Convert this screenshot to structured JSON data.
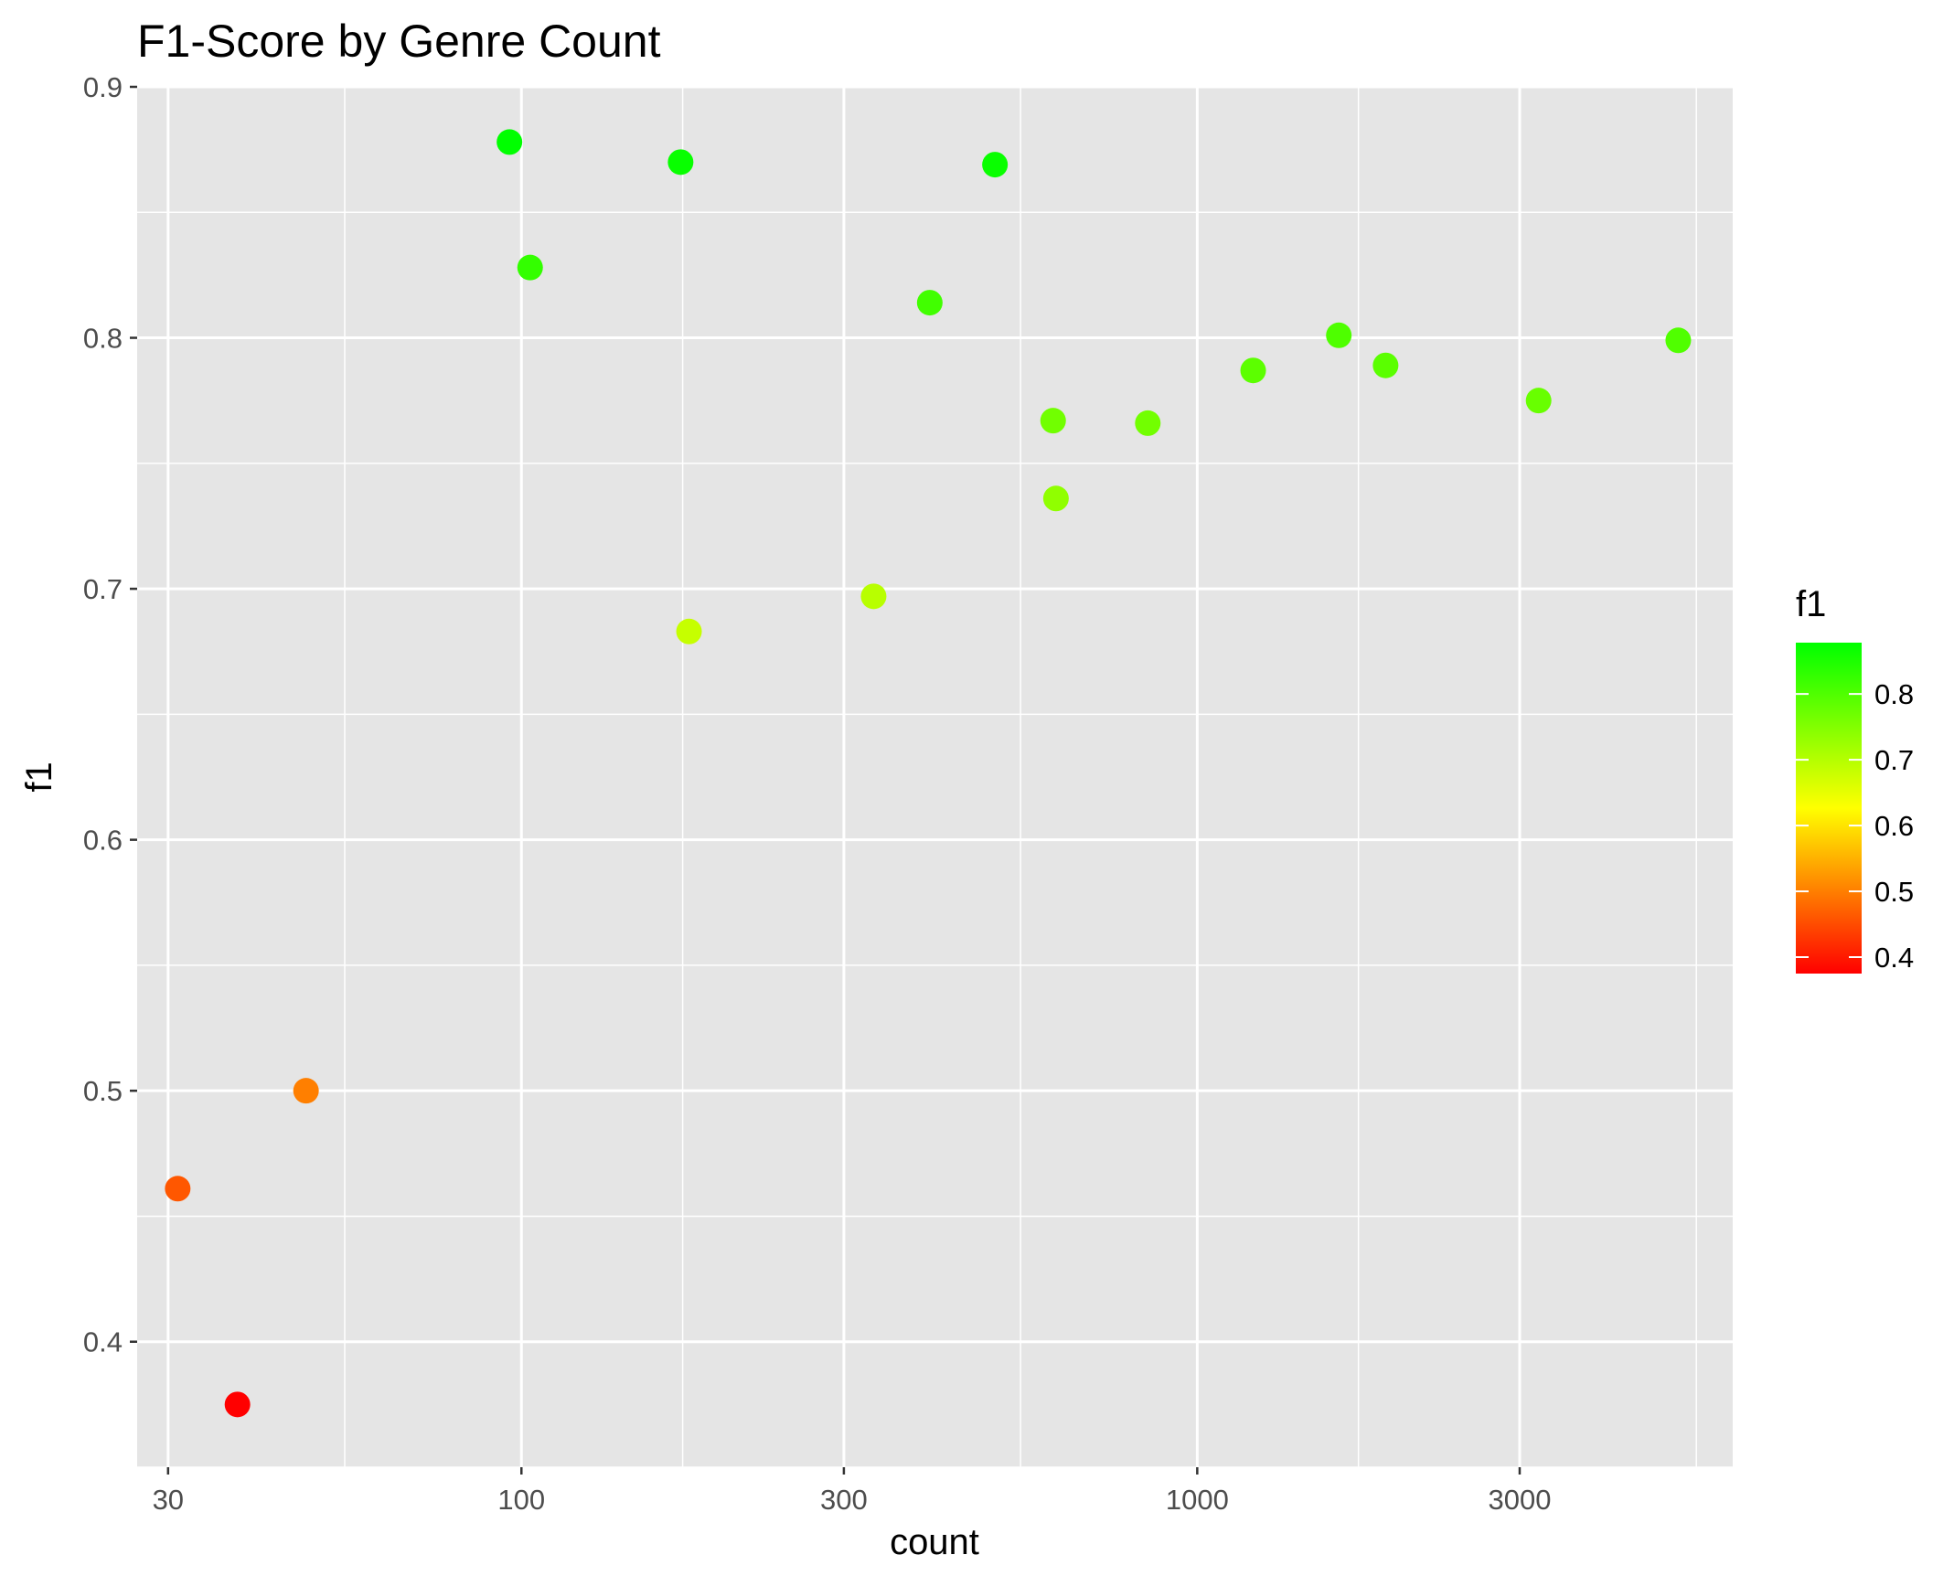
{
  "chart_data": {
    "type": "scatter",
    "title": "F1-Score by Genre Count",
    "xlabel": "count",
    "ylabel": "f1",
    "x_scale": "log10",
    "xlim": [
      27,
      6200
    ],
    "ylim": [
      0.35,
      0.9
    ],
    "x_ticks": [
      {
        "value": 30,
        "label": "30"
      },
      {
        "value": 100,
        "label": "100"
      },
      {
        "value": 300,
        "label": "300"
      },
      {
        "value": 1000,
        "label": "1000"
      },
      {
        "value": 3000,
        "label": "3000"
      }
    ],
    "y_ticks": [
      {
        "value": 0.4,
        "label": "0.4"
      },
      {
        "value": 0.5,
        "label": "0.5"
      },
      {
        "value": 0.6,
        "label": "0.6"
      },
      {
        "value": 0.7,
        "label": "0.7"
      },
      {
        "value": 0.8,
        "label": "0.8"
      },
      {
        "value": 0.9,
        "label": "0.9"
      }
    ],
    "grid": true,
    "panel_background": "#e5e5e5",
    "grid_color": "#ffffff",
    "points": [
      {
        "x": 31,
        "y": 0.461
      },
      {
        "x": 38,
        "y": 0.375
      },
      {
        "x": 48,
        "y": 0.5
      },
      {
        "x": 96,
        "y": 0.878
      },
      {
        "x": 103,
        "y": 0.828
      },
      {
        "x": 172,
        "y": 0.87
      },
      {
        "x": 177,
        "y": 0.683
      },
      {
        "x": 332,
        "y": 0.697
      },
      {
        "x": 402,
        "y": 0.814
      },
      {
        "x": 502,
        "y": 0.869
      },
      {
        "x": 612,
        "y": 0.767
      },
      {
        "x": 618,
        "y": 0.736
      },
      {
        "x": 845,
        "y": 0.766
      },
      {
        "x": 1210,
        "y": 0.787
      },
      {
        "x": 1620,
        "y": 0.801
      },
      {
        "x": 1900,
        "y": 0.789
      },
      {
        "x": 3200,
        "y": 0.775
      },
      {
        "x": 5150,
        "y": 0.799
      }
    ],
    "color_scale": {
      "variable": "f1",
      "title": "f1",
      "domain": [
        0.375,
        0.878
      ],
      "colors": [
        "#ff0000",
        "#ffff00",
        "#00ff00"
      ],
      "breaks": [
        0.4,
        0.5,
        0.6,
        0.7,
        0.8
      ],
      "break_labels": [
        "0.4",
        "0.5",
        "0.6",
        "0.7",
        "0.8"
      ]
    },
    "legend_position": "right"
  }
}
